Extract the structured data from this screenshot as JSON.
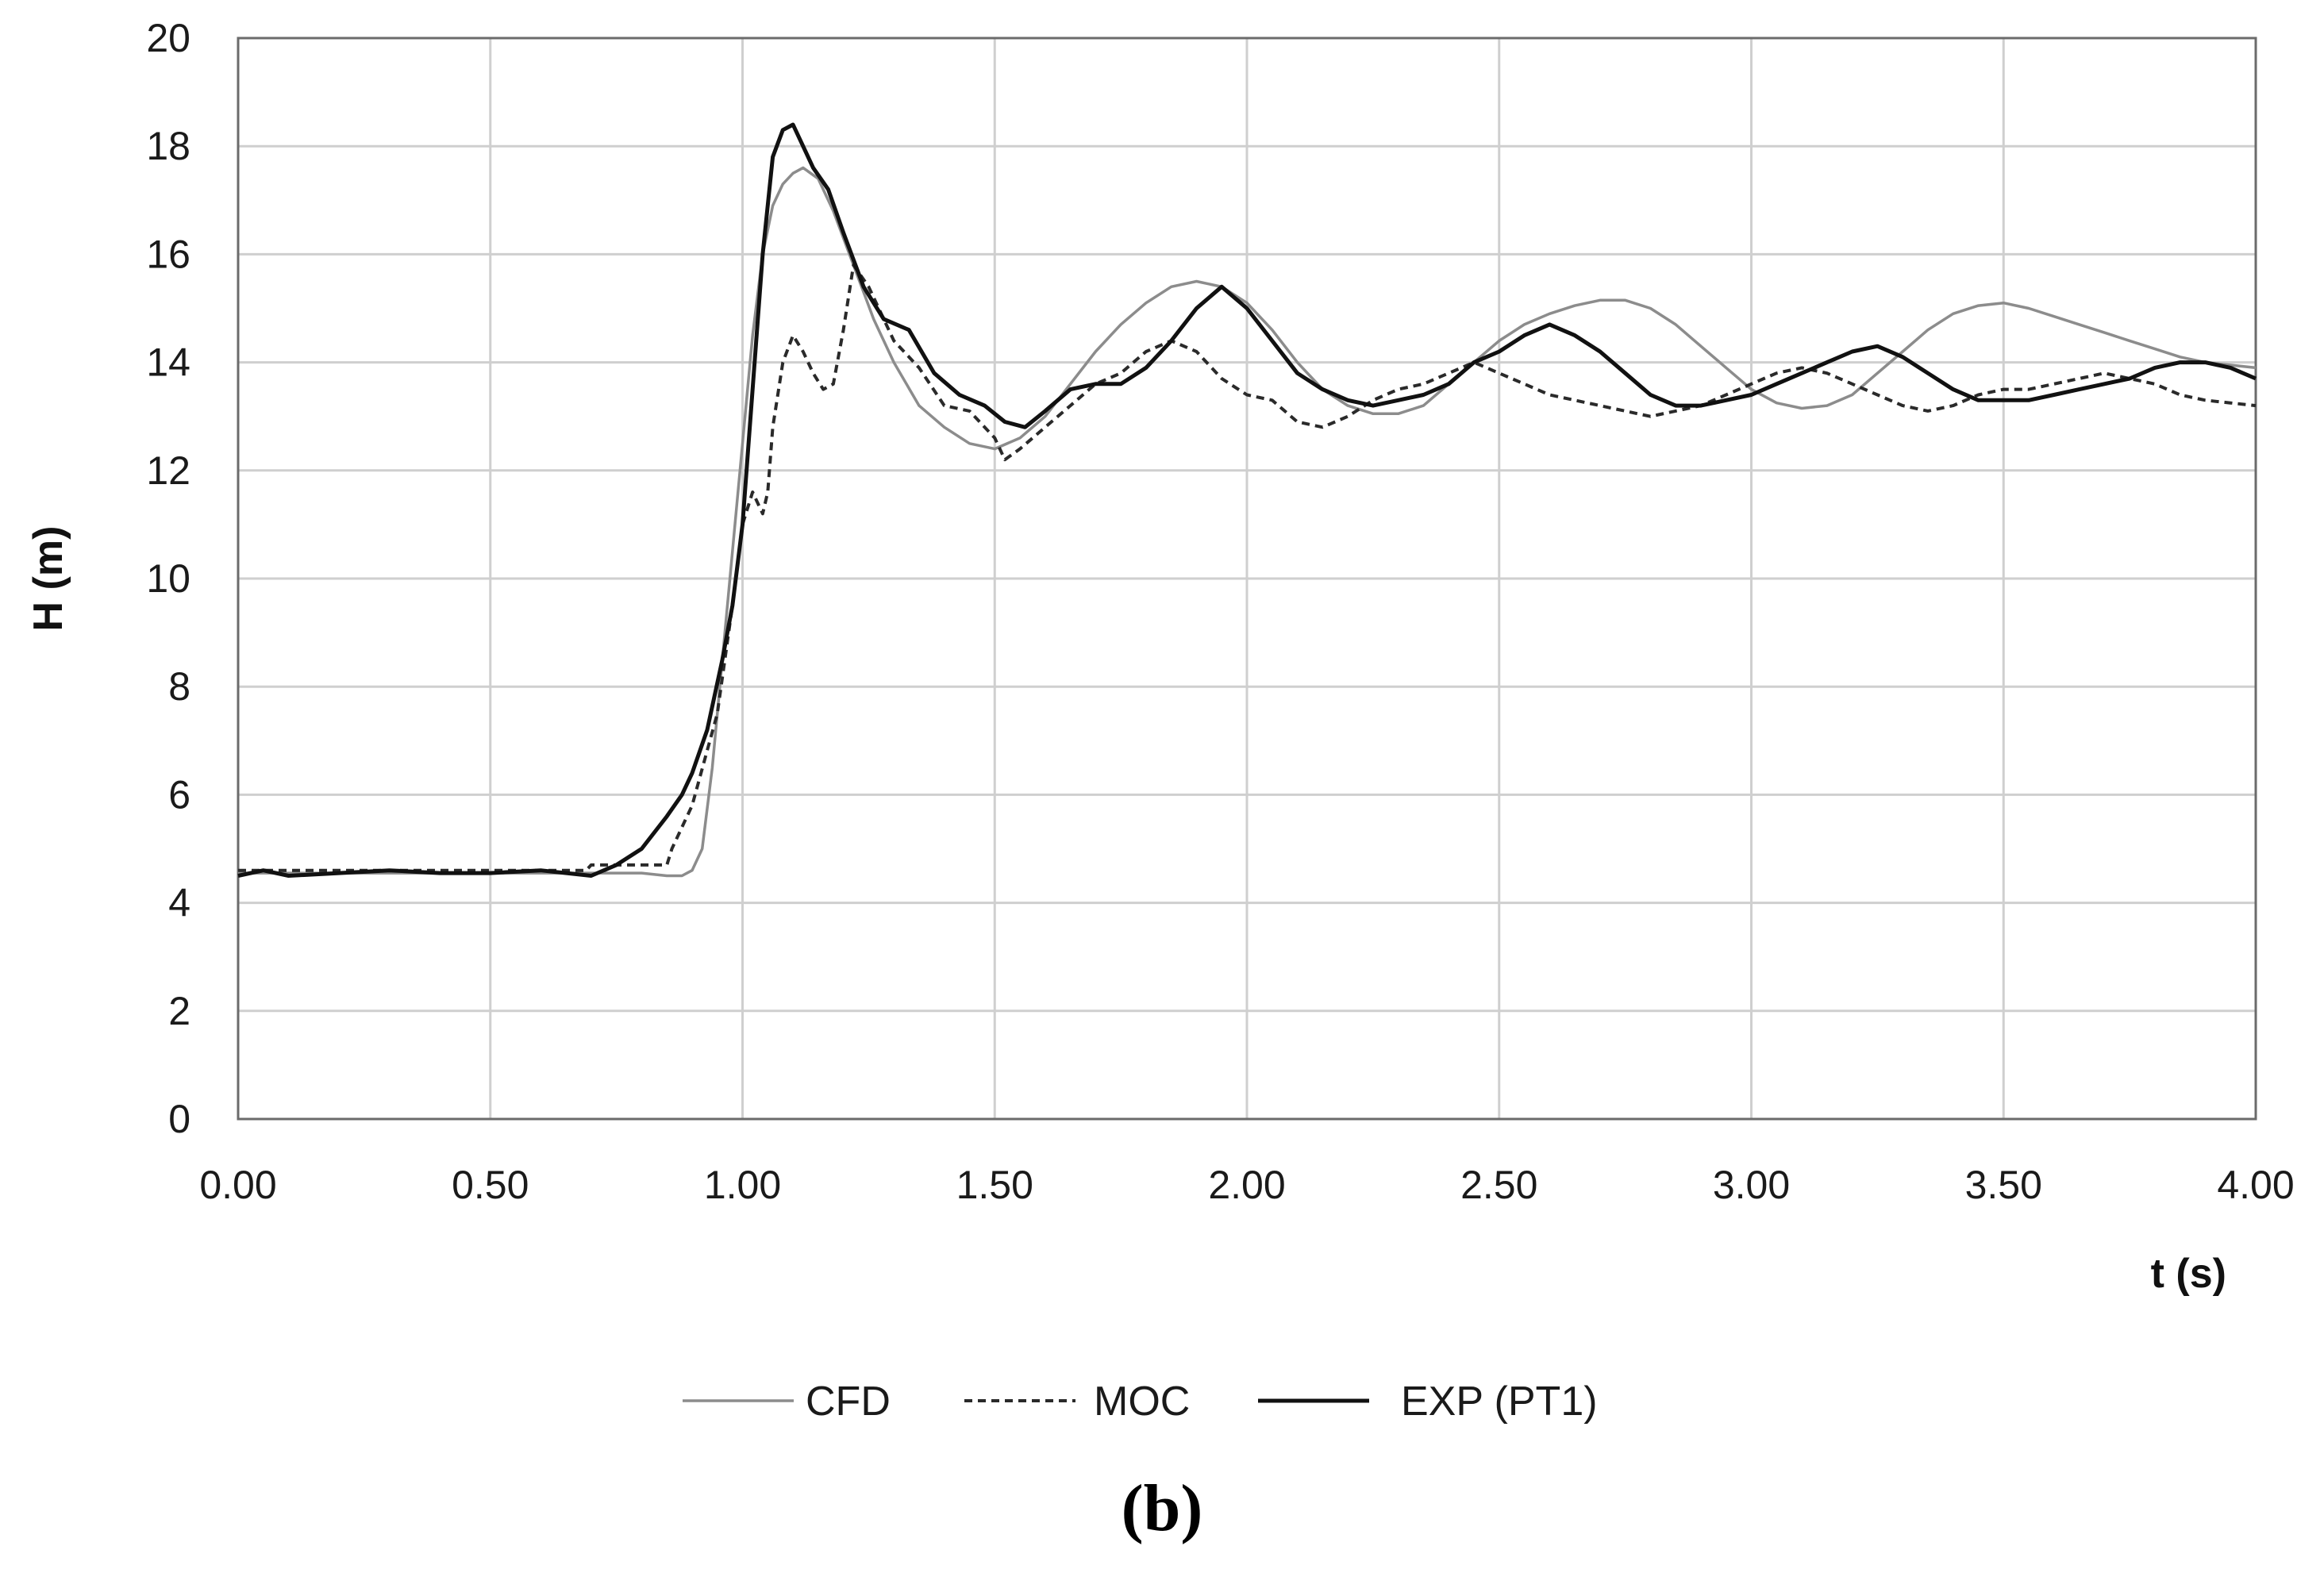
{
  "chart_data": {
    "type": "line",
    "title": "",
    "xlabel": "t (s)",
    "ylabel": "H (m)",
    "xlim": [
      0,
      4
    ],
    "ylim": [
      0,
      20
    ],
    "x_ticks": [
      "0.00",
      "0.50",
      "1.00",
      "1.50",
      "2.00",
      "2.50",
      "3.00",
      "3.50",
      "4.00"
    ],
    "y_ticks": [
      "0",
      "2",
      "4",
      "6",
      "8",
      "10",
      "12",
      "14",
      "16",
      "18",
      "20"
    ],
    "grid": true,
    "legend_position": "bottom-center",
    "panel_label": "(b)",
    "series": [
      {
        "name": "CFD",
        "color": "#8c8c8c",
        "style": "solid",
        "x": [
          0.0,
          0.1,
          0.2,
          0.3,
          0.4,
          0.5,
          0.6,
          0.7,
          0.8,
          0.85,
          0.88,
          0.9,
          0.92,
          0.94,
          0.96,
          0.98,
          1.0,
          1.02,
          1.04,
          1.06,
          1.08,
          1.1,
          1.12,
          1.15,
          1.18,
          1.22,
          1.26,
          1.3,
          1.35,
          1.4,
          1.45,
          1.5,
          1.55,
          1.6,
          1.65,
          1.7,
          1.75,
          1.8,
          1.85,
          1.9,
          1.95,
          2.0,
          2.05,
          2.1,
          2.15,
          2.2,
          2.25,
          2.3,
          2.35,
          2.4,
          2.45,
          2.5,
          2.55,
          2.6,
          2.65,
          2.7,
          2.75,
          2.8,
          2.85,
          2.9,
          2.95,
          3.0,
          3.05,
          3.1,
          3.15,
          3.2,
          3.25,
          3.3,
          3.35,
          3.4,
          3.45,
          3.5,
          3.55,
          3.6,
          3.65,
          3.7,
          3.75,
          3.8,
          3.85,
          3.9,
          3.95,
          4.0
        ],
        "y": [
          4.55,
          4.55,
          4.55,
          4.55,
          4.55,
          4.55,
          4.55,
          4.55,
          4.55,
          4.5,
          4.5,
          4.6,
          5.0,
          6.5,
          8.5,
          10.5,
          12.5,
          14.5,
          16.0,
          16.9,
          17.3,
          17.5,
          17.6,
          17.4,
          16.8,
          15.8,
          14.8,
          14.0,
          13.2,
          12.8,
          12.5,
          12.4,
          12.6,
          13.0,
          13.6,
          14.2,
          14.7,
          15.1,
          15.4,
          15.5,
          15.4,
          15.1,
          14.6,
          14.0,
          13.5,
          13.2,
          13.05,
          13.05,
          13.2,
          13.6,
          14.0,
          14.4,
          14.7,
          14.9,
          15.05,
          15.15,
          15.15,
          15.0,
          14.7,
          14.3,
          13.9,
          13.5,
          13.25,
          13.15,
          13.2,
          13.4,
          13.8,
          14.2,
          14.6,
          14.9,
          15.05,
          15.1,
          15.0,
          14.85,
          14.7,
          14.55,
          14.4,
          14.25,
          14.1,
          14.0,
          13.95,
          13.9
        ]
      },
      {
        "name": "MOC",
        "color": "#2a2a2a",
        "style": "dashed",
        "x": [
          0.0,
          0.5,
          0.69,
          0.7,
          0.85,
          0.86,
          0.9,
          0.95,
          0.98,
          1.0,
          1.02,
          1.04,
          1.05,
          1.06,
          1.08,
          1.1,
          1.12,
          1.14,
          1.16,
          1.18,
          1.2,
          1.22,
          1.25,
          1.3,
          1.35,
          1.4,
          1.45,
          1.5,
          1.52,
          1.55,
          1.6,
          1.65,
          1.7,
          1.75,
          1.8,
          1.85,
          1.9,
          1.95,
          2.0,
          2.05,
          2.1,
          2.15,
          2.2,
          2.25,
          2.3,
          2.35,
          2.4,
          2.45,
          2.5,
          2.55,
          2.6,
          2.65,
          2.7,
          2.75,
          2.8,
          2.85,
          2.9,
          2.95,
          3.0,
          3.05,
          3.1,
          3.15,
          3.2,
          3.25,
          3.3,
          3.35,
          3.4,
          3.45,
          3.5,
          3.55,
          3.6,
          3.65,
          3.7,
          3.75,
          3.8,
          3.85,
          3.9,
          3.95,
          4.0
        ],
        "y": [
          4.6,
          4.6,
          4.6,
          4.7,
          4.7,
          5.0,
          5.8,
          7.5,
          9.5,
          11.0,
          11.6,
          11.2,
          11.6,
          12.8,
          14.0,
          14.5,
          14.2,
          13.8,
          13.5,
          13.6,
          14.6,
          15.8,
          15.4,
          14.4,
          13.9,
          13.2,
          13.1,
          12.6,
          12.2,
          12.4,
          12.8,
          13.2,
          13.6,
          13.8,
          14.2,
          14.4,
          14.2,
          13.7,
          13.4,
          13.3,
          12.9,
          12.8,
          13.0,
          13.3,
          13.5,
          13.6,
          13.8,
          14.0,
          13.8,
          13.6,
          13.4,
          13.3,
          13.2,
          13.1,
          13.0,
          13.1,
          13.2,
          13.4,
          13.6,
          13.8,
          13.9,
          13.8,
          13.6,
          13.4,
          13.2,
          13.1,
          13.2,
          13.4,
          13.5,
          13.5,
          13.6,
          13.7,
          13.8,
          13.7,
          13.6,
          13.4,
          13.3,
          13.25,
          13.2
        ]
      },
      {
        "name": "EXP (PT1)",
        "color": "#111111",
        "style": "solid",
        "x": [
          0.0,
          0.05,
          0.1,
          0.2,
          0.3,
          0.4,
          0.5,
          0.6,
          0.7,
          0.75,
          0.8,
          0.85,
          0.88,
          0.9,
          0.93,
          0.96,
          0.98,
          1.0,
          1.02,
          1.04,
          1.06,
          1.08,
          1.1,
          1.12,
          1.14,
          1.17,
          1.2,
          1.24,
          1.28,
          1.33,
          1.38,
          1.43,
          1.48,
          1.52,
          1.56,
          1.6,
          1.65,
          1.7,
          1.75,
          1.8,
          1.85,
          1.9,
          1.95,
          2.0,
          2.05,
          2.1,
          2.15,
          2.2,
          2.25,
          2.3,
          2.35,
          2.4,
          2.45,
          2.5,
          2.55,
          2.6,
          2.65,
          2.7,
          2.75,
          2.8,
          2.85,
          2.9,
          2.95,
          3.0,
          3.05,
          3.1,
          3.15,
          3.2,
          3.25,
          3.3,
          3.35,
          3.4,
          3.45,
          3.5,
          3.55,
          3.6,
          3.65,
          3.7,
          3.75,
          3.8,
          3.85,
          3.9,
          3.95,
          4.0
        ],
        "y": [
          4.5,
          4.6,
          4.5,
          4.55,
          4.6,
          4.55,
          4.55,
          4.6,
          4.5,
          4.7,
          5.0,
          5.6,
          6.0,
          6.4,
          7.2,
          8.5,
          9.5,
          11.0,
          13.5,
          16.0,
          17.8,
          18.3,
          18.4,
          18.0,
          17.6,
          17.2,
          16.4,
          15.4,
          14.8,
          14.6,
          13.8,
          13.4,
          13.2,
          12.9,
          12.8,
          13.1,
          13.5,
          13.6,
          13.6,
          13.9,
          14.4,
          15.0,
          15.4,
          15.0,
          14.4,
          13.8,
          13.5,
          13.3,
          13.2,
          13.3,
          13.4,
          13.6,
          14.0,
          14.2,
          14.5,
          14.7,
          14.5,
          14.2,
          13.8,
          13.4,
          13.2,
          13.2,
          13.3,
          13.4,
          13.6,
          13.8,
          14.0,
          14.2,
          14.3,
          14.1,
          13.8,
          13.5,
          13.3,
          13.3,
          13.3,
          13.4,
          13.5,
          13.6,
          13.7,
          13.9,
          14.0,
          14.0,
          13.9,
          13.7
        ]
      }
    ]
  }
}
